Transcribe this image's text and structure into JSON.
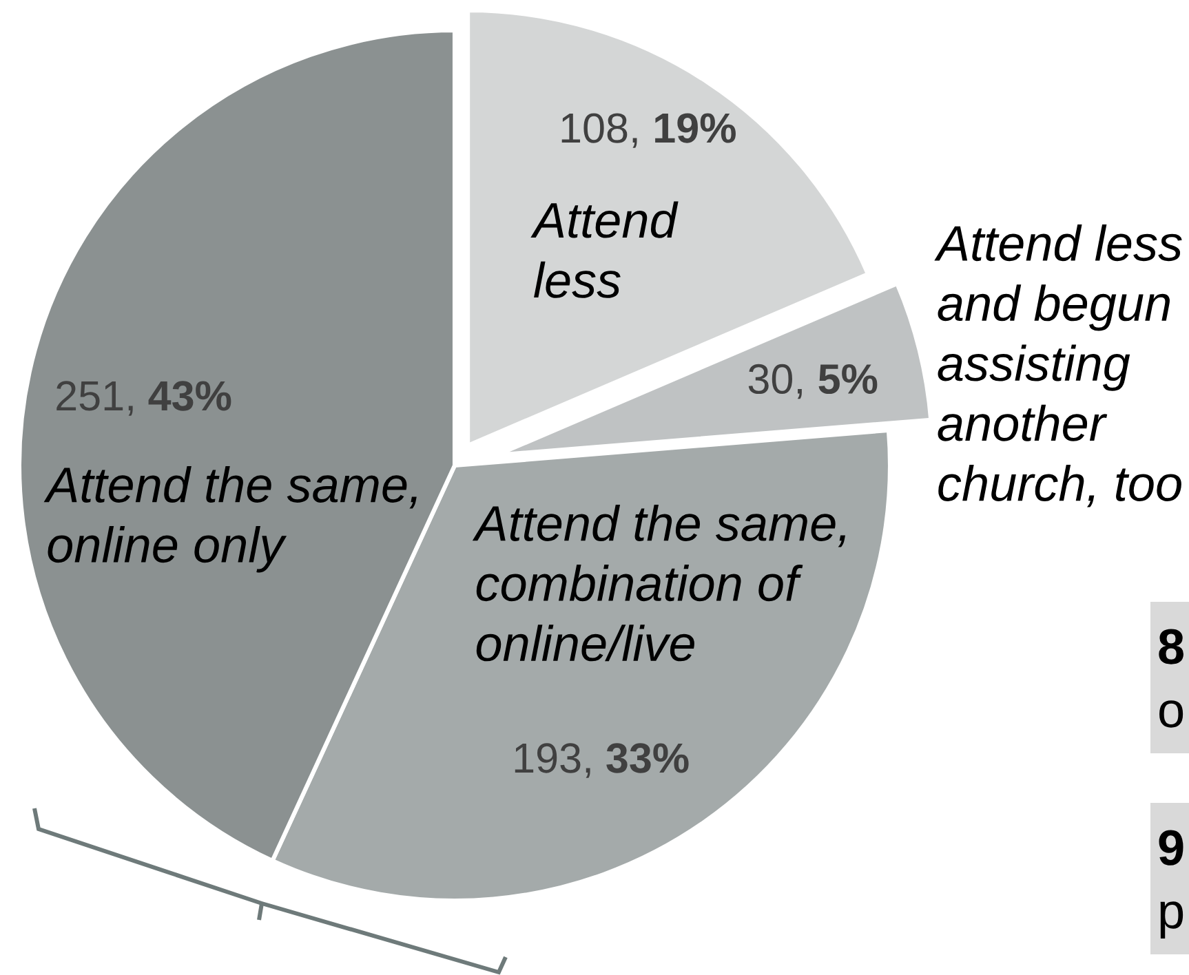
{
  "chart_data": {
    "type": "pie",
    "categories": [
      "Attend\nless",
      "Attend less\nand begun\nassisting\nanother\nchurch, too",
      "Attend the same,\ncombination of\nonline/live",
      "Attend the same,\nonline only"
    ],
    "values": [
      108,
      30,
      193,
      251
    ],
    "colors": [
      "#d4d6d6",
      "#bfc2c3",
      "#a4aaaa",
      "#8b9191"
    ],
    "value_labels": [
      "108, 19%",
      "30, 5%",
      "193, 33%",
      "251, 43%"
    ],
    "annotations": [
      "8\no",
      "9\np"
    ]
  }
}
